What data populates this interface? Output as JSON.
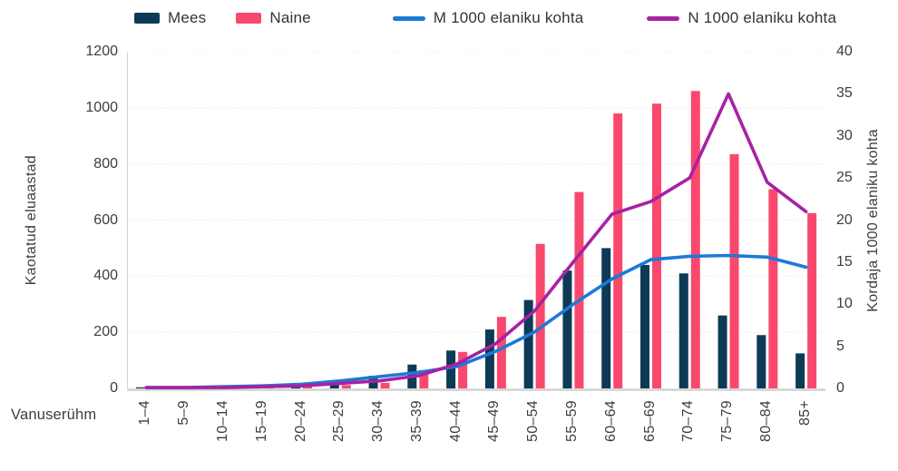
{
  "legend": {
    "items": [
      {
        "key": "mees",
        "type": "bar",
        "series": 0
      },
      {
        "key": "naine",
        "type": "bar",
        "series": 1
      },
      {
        "key": "m-line",
        "type": "line",
        "series": 2
      },
      {
        "key": "n-line",
        "type": "line",
        "series": 3
      }
    ]
  },
  "chart_data": {
    "type": "combo-bar-line",
    "categories": [
      "1–4",
      "5–9",
      "10–14",
      "15–19",
      "20–24",
      "25–29",
      "30–34",
      "35–39",
      "40–44",
      "45–49",
      "50–54",
      "55–59",
      "60–64",
      "65–69",
      "70–74",
      "75–79",
      "80–84",
      "85+"
    ],
    "series": [
      {
        "name": "Mees",
        "type": "bar",
        "axis": "left",
        "color": "#0d3a56",
        "values": [
          2,
          2,
          4,
          8,
          12,
          18,
          45,
          85,
          135,
          210,
          315,
          420,
          500,
          440,
          410,
          260,
          190,
          125
        ]
      },
      {
        "name": "Naine",
        "type": "bar",
        "axis": "left",
        "color": "#f9486e",
        "values": [
          2,
          2,
          3,
          5,
          8,
          12,
          20,
          65,
          130,
          255,
          515,
          700,
          980,
          1015,
          1060,
          835,
          710,
          625
        ]
      },
      {
        "name": "M 1000 elaniku kohta",
        "type": "line",
        "axis": "right",
        "color": "#1a7ad7",
        "values": [
          0.1,
          0.1,
          0.2,
          0.3,
          0.5,
          0.9,
          1.4,
          1.9,
          2.6,
          4.4,
          6.7,
          10.0,
          13.0,
          15.3,
          15.7,
          15.8,
          15.6,
          14.4
        ]
      },
      {
        "name": "N 1000 elaniku kohta",
        "type": "line",
        "axis": "right",
        "color": "#a722a3",
        "values": [
          0.1,
          0.1,
          0.1,
          0.2,
          0.3,
          0.6,
          0.9,
          1.5,
          2.9,
          5.3,
          9.2,
          15.0,
          20.7,
          22.2,
          25.0,
          35.0,
          24.5,
          21.0
        ]
      }
    ],
    "left_axis": {
      "title": "Kaotatud eluaastad",
      "min": 0,
      "max": 1200,
      "ticks": [
        0,
        200,
        400,
        600,
        800,
        1000,
        1200
      ]
    },
    "right_axis": {
      "title": "Kordaja 1000 elaniku kohta",
      "min": 0,
      "max": 40,
      "ticks": [
        0,
        5,
        10,
        15,
        20,
        25,
        30,
        35,
        40
      ]
    },
    "x_axis": {
      "title": "Vanuserühm"
    },
    "grid": {
      "horizontal": true,
      "style": "dotted",
      "color": "#dcdcdc"
    },
    "legend_position": "top"
  }
}
